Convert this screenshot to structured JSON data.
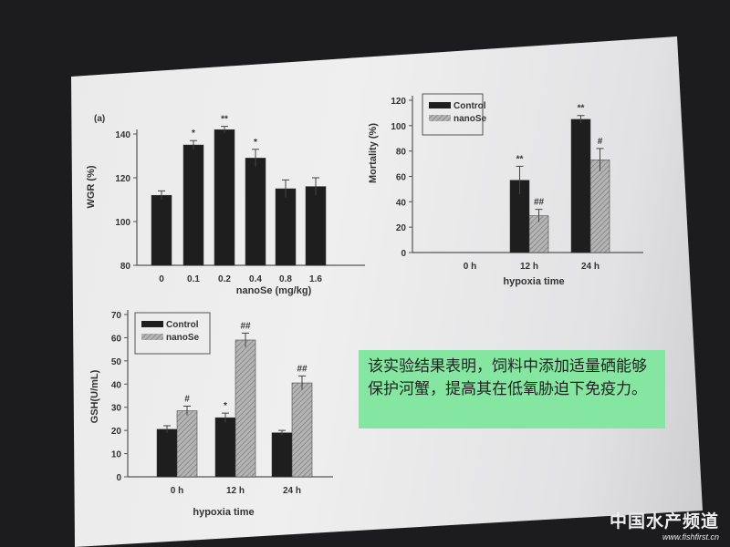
{
  "colors": {
    "control": "#1e1e1e",
    "nanose": "#a9a9a9",
    "note_bg": "#84e6a0"
  },
  "chart_data": [
    {
      "type": "bar",
      "panel_label": "(a)",
      "xlabel": "nanoSe (mg/kg)",
      "ylabel": "WGR (%)",
      "ylim": [
        80,
        140
      ],
      "yticks": [
        80,
        100,
        120,
        140
      ],
      "categories": [
        "0",
        "0.1",
        "0.2",
        "0.4",
        "0.8",
        "1.6"
      ],
      "values": [
        112,
        135,
        142,
        129,
        115,
        116
      ],
      "errors": [
        2,
        2,
        1.5,
        4,
        4,
        4
      ],
      "annotations": [
        "",
        "*",
        "**",
        "*",
        "",
        ""
      ]
    },
    {
      "type": "bar",
      "xlabel": "hypoxia time",
      "ylabel": "Mortality (%)",
      "ylim": [
        0,
        120
      ],
      "yticks": [
        0,
        20,
        40,
        60,
        80,
        100,
        120
      ],
      "categories": [
        "0 h",
        "12 h",
        "24 h"
      ],
      "series": [
        {
          "name": "Control",
          "values": [
            0,
            57,
            105
          ],
          "errors": [
            0,
            11,
            3
          ],
          "annotations": [
            "",
            "**",
            "**"
          ]
        },
        {
          "name": "nanoSe",
          "values": [
            0,
            29,
            73
          ],
          "errors": [
            0,
            5,
            9
          ],
          "annotations": [
            "",
            "##",
            "#"
          ]
        }
      ],
      "legend": "top-left"
    },
    {
      "type": "bar",
      "xlabel": "hypoxia time",
      "ylabel": "GSH(U/mL)",
      "ylim": [
        0,
        70
      ],
      "yticks": [
        0,
        10,
        20,
        30,
        40,
        50,
        60,
        70
      ],
      "categories": [
        "0 h",
        "12 h",
        "24 h"
      ],
      "series": [
        {
          "name": "Control",
          "values": [
            20.5,
            25.5,
            19
          ],
          "errors": [
            1.5,
            2,
            1
          ],
          "annotations": [
            "",
            "*",
            ""
          ]
        },
        {
          "name": "nanoSe",
          "values": [
            28.5,
            59,
            40.5
          ],
          "errors": [
            2,
            3,
            3
          ],
          "annotations": [
            "#",
            "##",
            "##"
          ]
        }
      ],
      "legend": "top-left"
    }
  ],
  "note": "该实验结果表明，饲料中添加适量硒能够保护河蟹，提高其在低氧胁迫下免疫力。",
  "watermark": {
    "name": "中国水产频道",
    "url": "www.fishfirst.cn"
  }
}
